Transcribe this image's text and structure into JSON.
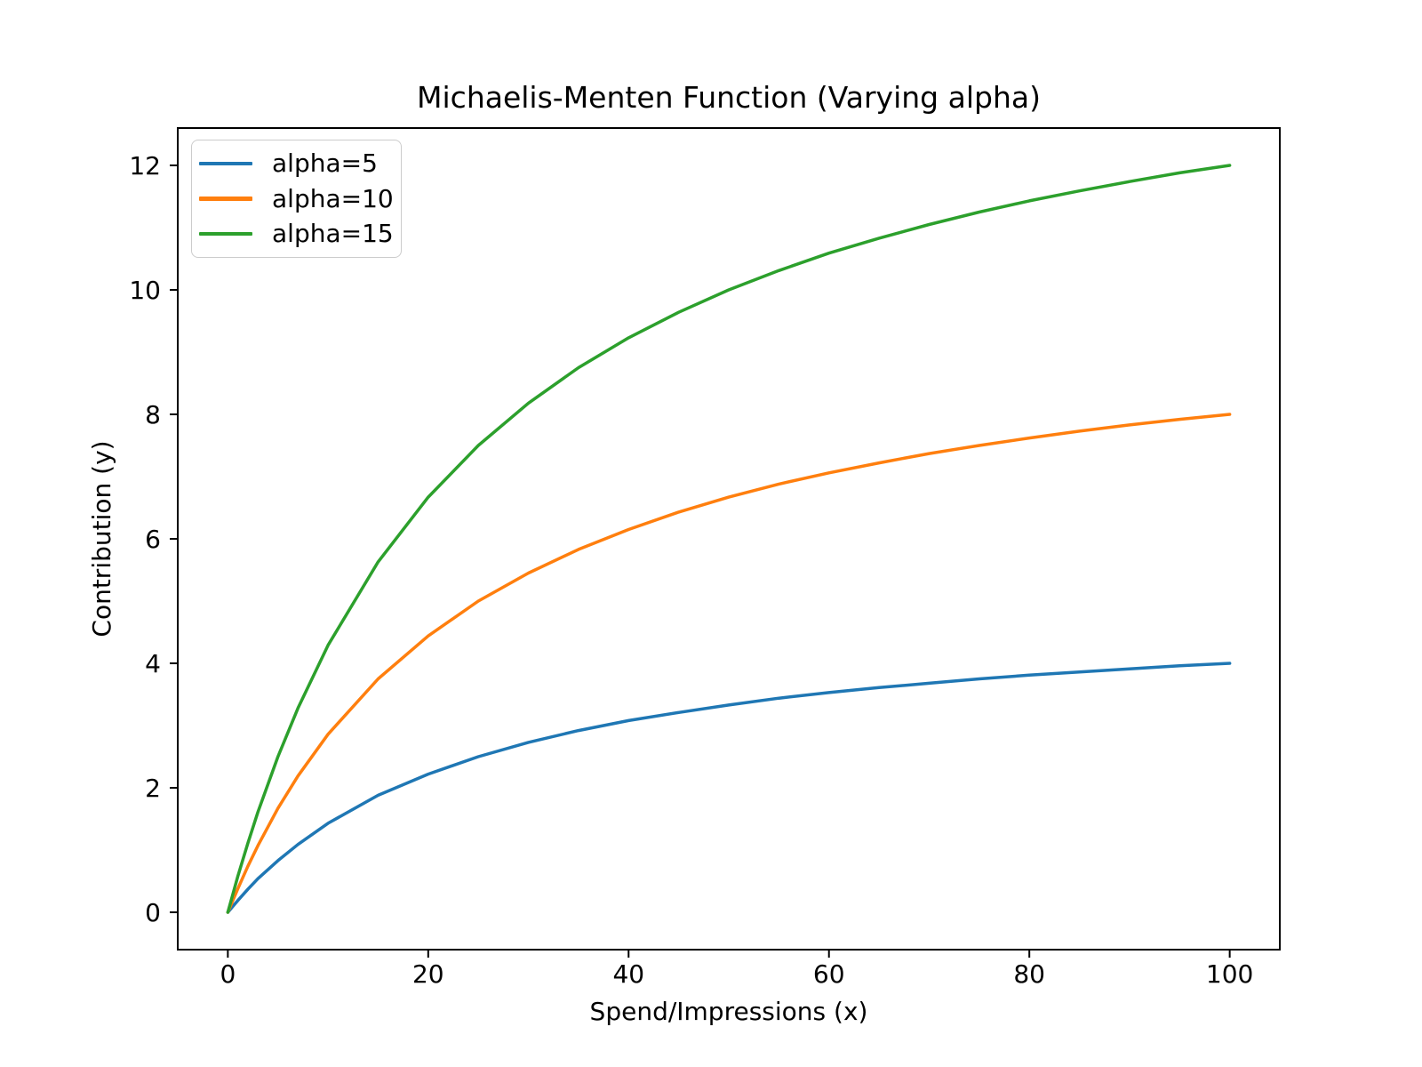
{
  "figure": {
    "background": "#ffffff",
    "axis_color": "#000000",
    "text_color": "#000000",
    "legend_border_color": "#cccccc"
  },
  "chart_data": {
    "type": "line",
    "title": "Michaelis-Menten Function (Varying alpha)",
    "xlabel": "Spend/Impressions (x)",
    "ylabel": "Contribution (y)",
    "xlim": [
      -5,
      105
    ],
    "ylim": [
      -0.6,
      12.6
    ],
    "xticks": [
      0,
      20,
      40,
      60,
      80,
      100
    ],
    "yticks": [
      0,
      2,
      4,
      6,
      8,
      10,
      12
    ],
    "grid": false,
    "legend_position": "upper-left",
    "x": [
      0,
      1,
      2,
      3,
      5,
      7,
      10,
      15,
      20,
      25,
      30,
      35,
      40,
      45,
      50,
      55,
      60,
      65,
      70,
      75,
      80,
      85,
      90,
      95,
      100
    ],
    "series": [
      {
        "name": "alpha=5",
        "color": "#1f77b4",
        "values": [
          0,
          0.19,
          0.37,
          0.54,
          0.83,
          1.09,
          1.43,
          1.88,
          2.22,
          2.5,
          2.73,
          2.92,
          3.08,
          3.21,
          3.33,
          3.44,
          3.53,
          3.61,
          3.68,
          3.75,
          3.81,
          3.86,
          3.91,
          3.96,
          4.0
        ]
      },
      {
        "name": "alpha=10",
        "color": "#ff7f0e",
        "values": [
          0,
          0.38,
          0.74,
          1.07,
          1.67,
          2.19,
          2.86,
          3.75,
          4.44,
          5.0,
          5.45,
          5.83,
          6.15,
          6.43,
          6.67,
          6.88,
          7.06,
          7.22,
          7.37,
          7.5,
          7.62,
          7.73,
          7.83,
          7.92,
          8.0
        ]
      },
      {
        "name": "alpha=15",
        "color": "#2ca02c",
        "values": [
          0,
          0.58,
          1.11,
          1.61,
          2.5,
          3.28,
          4.29,
          5.63,
          6.67,
          7.5,
          8.18,
          8.75,
          9.23,
          9.64,
          10.0,
          10.31,
          10.59,
          10.83,
          11.05,
          11.25,
          11.43,
          11.59,
          11.74,
          11.88,
          12.0
        ]
      }
    ]
  }
}
